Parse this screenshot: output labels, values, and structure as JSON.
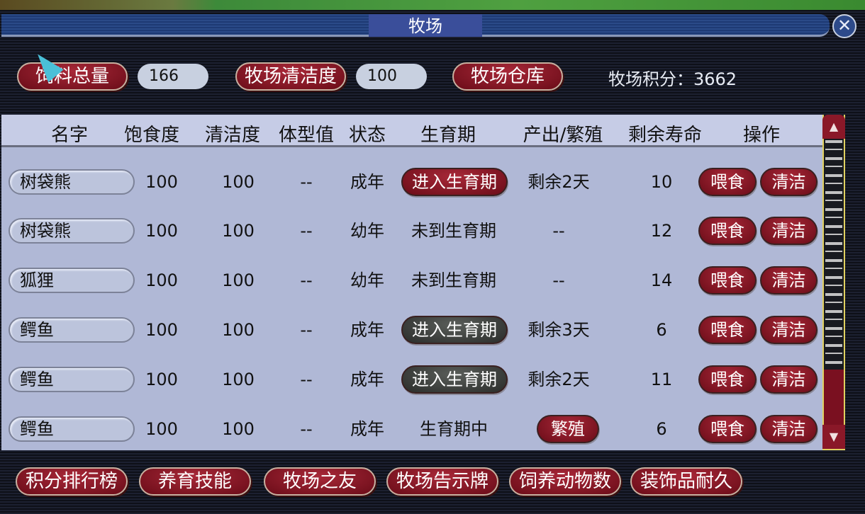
{
  "window": {
    "title": "牧场",
    "close_icon": "close-icon"
  },
  "top": {
    "feed_label": "饲料总量",
    "feed_value": "166",
    "clean_label": "牧场清洁度",
    "clean_value": "100",
    "warehouse_label": "牧场仓库",
    "score_text": "牧场积分：3662"
  },
  "table": {
    "headers": [
      "名字",
      "饱食度",
      "清洁度",
      "体型值",
      "状态",
      "生育期",
      "产出/繁殖",
      "剩余寿命",
      "操作"
    ],
    "rows": [
      {
        "name": "树袋熊",
        "satiety": "100",
        "clean": "100",
        "size": "--",
        "state": "成年",
        "breed": {
          "type": "button",
          "label": "进入生育期",
          "style": "red"
        },
        "output": {
          "type": "text",
          "label": "剩余2天"
        },
        "life": "10"
      },
      {
        "name": "树袋熊",
        "satiety": "100",
        "clean": "100",
        "size": "--",
        "state": "幼年",
        "breed": {
          "type": "text",
          "label": "未到生育期"
        },
        "output": {
          "type": "text",
          "label": "--"
        },
        "life": "12"
      },
      {
        "name": "狐狸",
        "satiety": "100",
        "clean": "100",
        "size": "--",
        "state": "幼年",
        "breed": {
          "type": "text",
          "label": "未到生育期"
        },
        "output": {
          "type": "text",
          "label": "--"
        },
        "life": "14"
      },
      {
        "name": "鳄鱼",
        "satiety": "100",
        "clean": "100",
        "size": "--",
        "state": "成年",
        "breed": {
          "type": "button",
          "label": "进入生育期",
          "style": "dark"
        },
        "output": {
          "type": "text",
          "label": "剩余3天"
        },
        "life": "6"
      },
      {
        "name": "鳄鱼",
        "satiety": "100",
        "clean": "100",
        "size": "--",
        "state": "成年",
        "breed": {
          "type": "button",
          "label": "进入生育期",
          "style": "dark"
        },
        "output": {
          "type": "text",
          "label": "剩余2天"
        },
        "life": "11"
      },
      {
        "name": "鳄鱼",
        "satiety": "100",
        "clean": "100",
        "size": "--",
        "state": "成年",
        "breed": {
          "type": "text",
          "label": "生育期中"
        },
        "output": {
          "type": "button",
          "label": "繁殖",
          "style": "red"
        },
        "life": "6"
      }
    ],
    "feed_label": "喂食",
    "clean_label": "清洁"
  },
  "bottom": [
    "积分排行榜",
    "养育技能",
    "牧场之友",
    "牧场告示牌",
    "饲养动物数",
    "装饰品耐久"
  ],
  "colors": {
    "button_red": "#8a1828",
    "button_dark": "#3a3c3a",
    "panel": "#b0b8d6",
    "title_bar": "#2a4a88"
  }
}
